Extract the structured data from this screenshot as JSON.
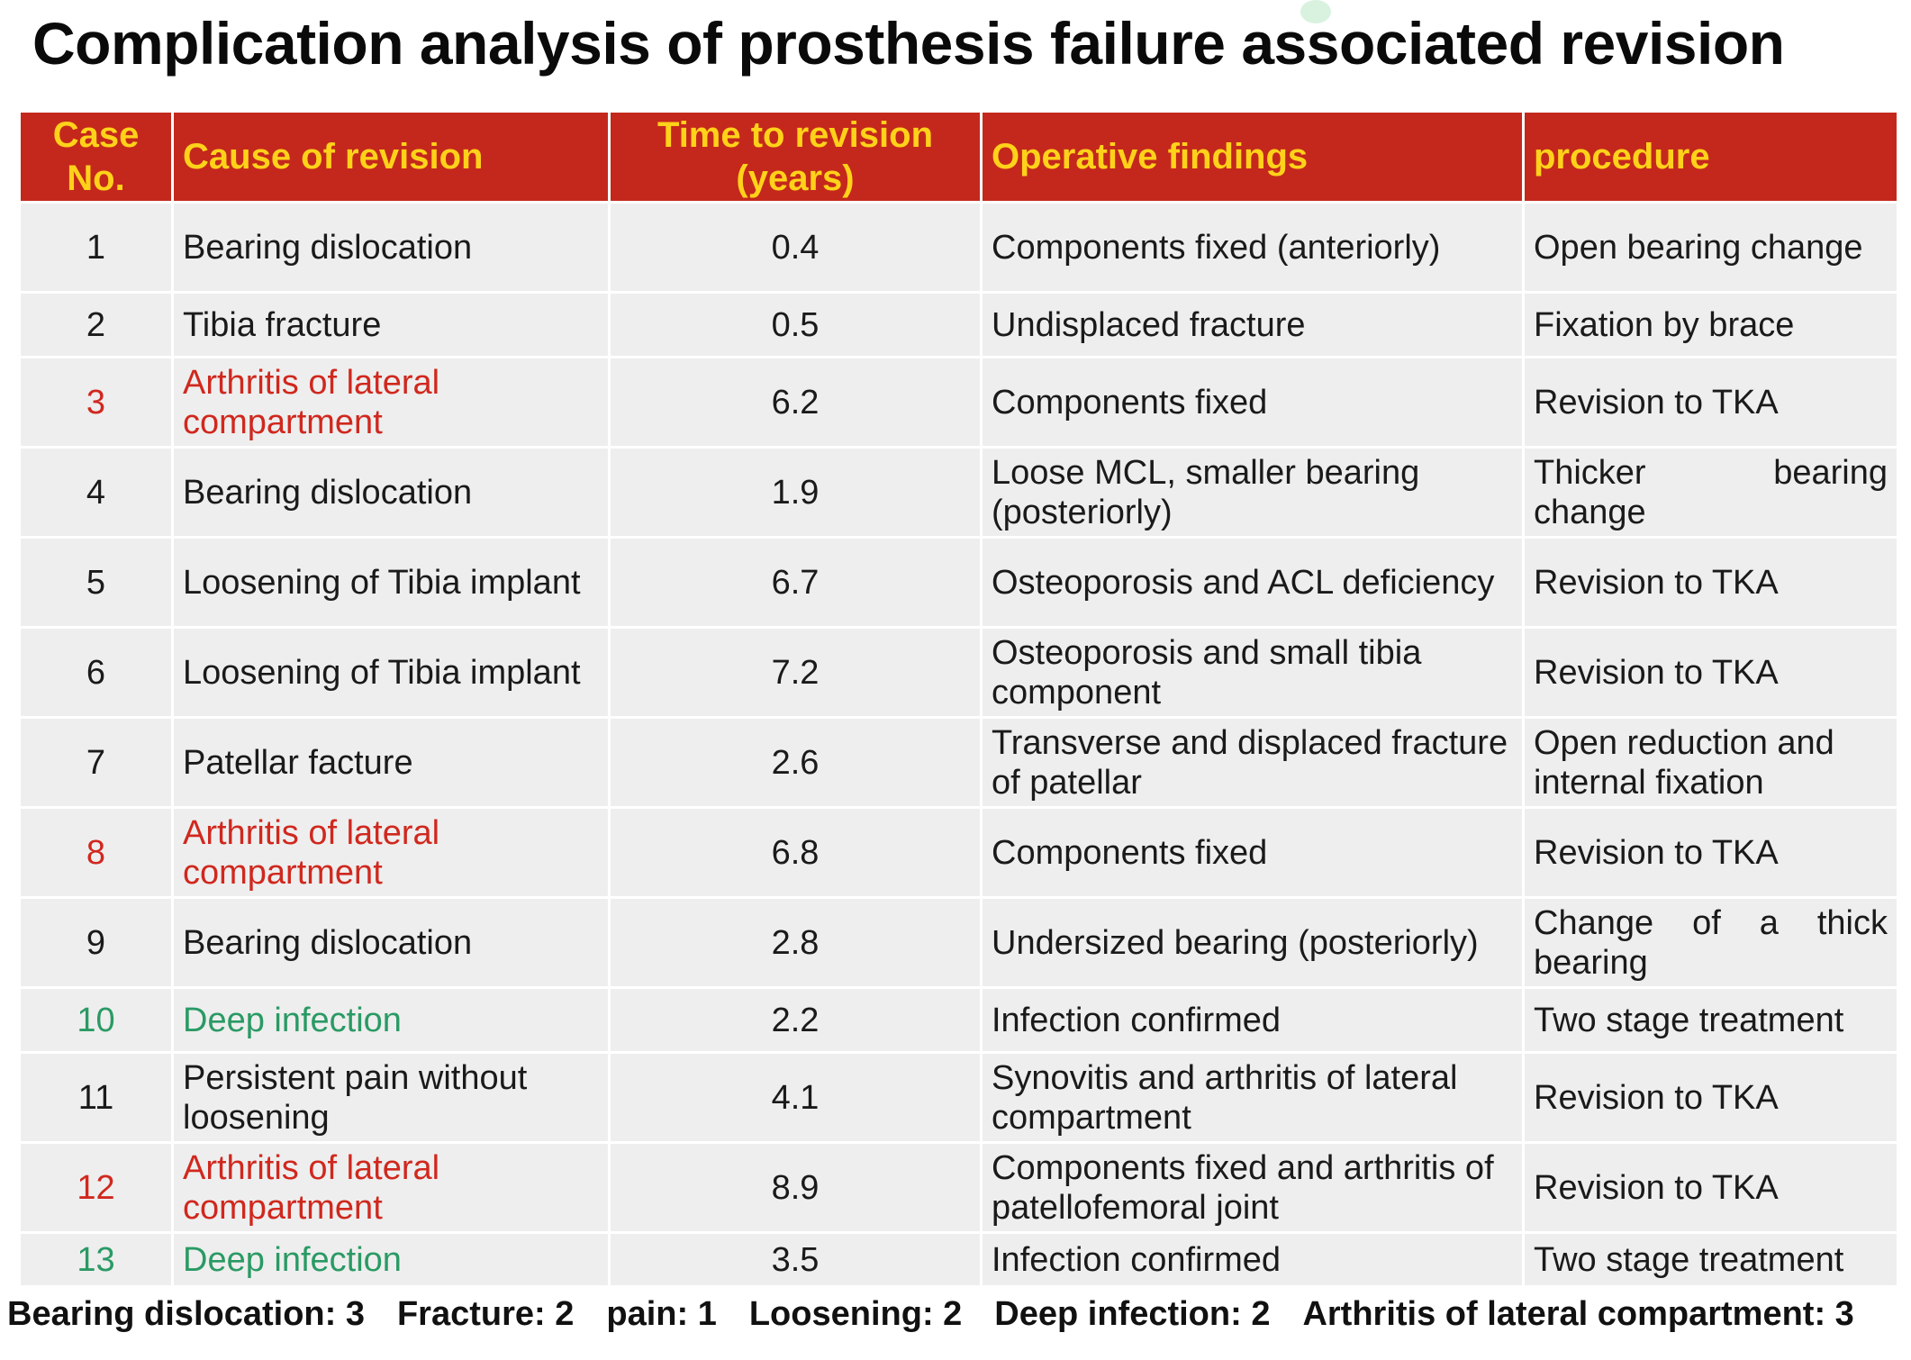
{
  "title": "Complication analysis of prosthesis failure associated revision",
  "columns": [
    "Case No.",
    "Cause of revision",
    "Time to revision (years)",
    "Operative findings",
    "procedure"
  ],
  "rows": [
    {
      "case": "1",
      "cause": "Bearing dislocation",
      "time": "0.4",
      "findings": "Components fixed (anteriorly)",
      "procedure": "Open bearing change",
      "color": "default"
    },
    {
      "case": "2",
      "cause": "Tibia fracture",
      "time": "0.5",
      "findings": "Undisplaced fracture",
      "procedure": "Fixation by brace",
      "color": "default"
    },
    {
      "case": "3",
      "cause": "Arthritis of lateral compartment",
      "time": "6.2",
      "findings": "Components fixed",
      "procedure": "Revision to TKA",
      "color": "red"
    },
    {
      "case": "4",
      "cause": "Bearing dislocation",
      "time": "1.9",
      "findings": "Loose MCL, smaller bearing (posteriorly)",
      "procedure": "Thicker bearing change",
      "color": "default"
    },
    {
      "case": "5",
      "cause": "Loosening of Tibia implant",
      "time": "6.7",
      "findings": "Osteoporosis and ACL deficiency",
      "procedure": "Revision to TKA",
      "color": "default"
    },
    {
      "case": "6",
      "cause": "Loosening of Tibia implant",
      "time": "7.2",
      "findings": "Osteoporosis and small tibia component",
      "procedure": "Revision to TKA",
      "color": "default"
    },
    {
      "case": "7",
      "cause": "Patellar facture",
      "time": "2.6",
      "findings": "Transverse and displaced fracture of patellar",
      "procedure": "Open reduction and internal fixation",
      "color": "default"
    },
    {
      "case": "8",
      "cause": "Arthritis of lateral compartment",
      "time": "6.8",
      "findings": "Components fixed",
      "procedure": "Revision to TKA",
      "color": "red"
    },
    {
      "case": "9",
      "cause": "Bearing dislocation",
      "time": "2.8",
      "findings": "Undersized bearing (posteriorly)",
      "procedure": "Change of a thick bearing",
      "color": "default"
    },
    {
      "case": "10",
      "cause": "Deep infection",
      "time": "2.2",
      "findings": "Infection confirmed",
      "procedure": "Two stage treatment",
      "color": "green"
    },
    {
      "case": "11",
      "cause": "Persistent pain without loosening",
      "time": "4.1",
      "findings": "Synovitis and arthritis of lateral compartment",
      "procedure": "Revision to TKA",
      "color": "default"
    },
    {
      "case": "12",
      "cause": "Arthritis of lateral compartment",
      "time": "8.9",
      "findings": "Components fixed and arthritis of patellofemoral joint",
      "procedure": "Revision to TKA",
      "color": "red"
    },
    {
      "case": "13",
      "cause": "Deep infection",
      "time": "3.5",
      "findings": "Infection confirmed",
      "procedure": "Two stage treatment",
      "color": "green"
    }
  ],
  "summary": [
    "Bearing dislocation: 3",
    "Fracture: 2",
    "pain: 1",
    "Loosening: 2",
    "Deep infection: 2",
    "Arthritis of lateral compartment: 3"
  ],
  "colors": {
    "header_bg": "#c4281c",
    "header_text": "#ffd21a",
    "cell_bg": "#eeeeee",
    "highlight_red": "#d0281e",
    "highlight_green": "#2a9a64"
  }
}
